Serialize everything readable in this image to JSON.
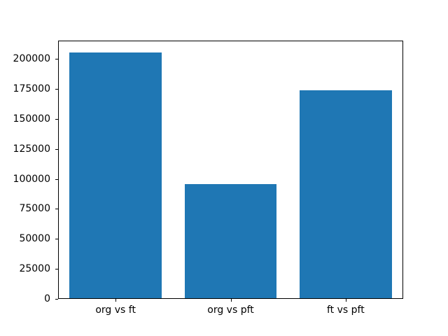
{
  "chart_data": {
    "type": "bar",
    "categories": [
      "org vs ft",
      "org vs pft",
      "ft vs pft"
    ],
    "values": [
      205000,
      95000,
      173000
    ],
    "title": "",
    "xlabel": "",
    "ylabel": "",
    "ylim": [
      0,
      215250
    ],
    "yticks": [
      0,
      25000,
      50000,
      75000,
      100000,
      125000,
      150000,
      175000,
      200000
    ],
    "bar_width_fraction": 0.8,
    "grid": false,
    "legend": null,
    "colors": {
      "bar": "#1f77b4",
      "background": "#ffffff",
      "spine": "#000000",
      "text": "#000000"
    }
  }
}
